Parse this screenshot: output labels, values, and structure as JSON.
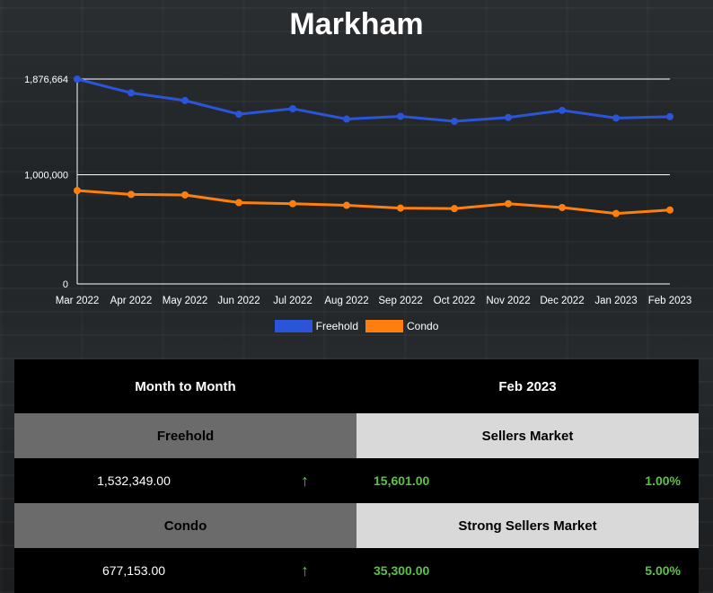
{
  "chart_data": {
    "type": "line",
    "title": "Markham",
    "categories": [
      "Mar 2022",
      "Apr 2022",
      "May 2022",
      "Jun 2022",
      "Jul 2022",
      "Aug 2022",
      "Sep 2022",
      "Oct 2022",
      "Nov 2022",
      "Dec 2022",
      "Jan 2023",
      "Feb 2023"
    ],
    "y_ticks": [
      0,
      1000000,
      1876664
    ],
    "y_tick_labels": [
      "0",
      "1,000,000",
      "1,876,664"
    ],
    "ylim": [
      0,
      1876664
    ],
    "grid": true,
    "legend": "bottom",
    "series": [
      {
        "name": "Freehold",
        "color": "#2a55d8",
        "values": [
          1876664,
          1750000,
          1680000,
          1555000,
          1605000,
          1510000,
          1535000,
          1490000,
          1525000,
          1590000,
          1520000,
          1532349
        ]
      },
      {
        "name": "Condo",
        "color": "#ff7f0e",
        "values": [
          855000,
          820000,
          815000,
          745000,
          735000,
          720000,
          695000,
          690000,
          735000,
          700000,
          645000,
          677153
        ]
      }
    ]
  },
  "summary": {
    "header_left": "Month to Month",
    "header_right": "Feb 2023",
    "freehold": {
      "label": "Freehold",
      "market": "Sellers Market",
      "price": "1,532,349.00",
      "arrow": "↑",
      "change": "15,601.00",
      "percent": "1.00%"
    },
    "condo": {
      "label": "Condo",
      "market": "Strong Sellers Market",
      "price": "677,153.00",
      "arrow": "↑",
      "change": "35,300.00",
      "percent": "5.00%"
    }
  }
}
